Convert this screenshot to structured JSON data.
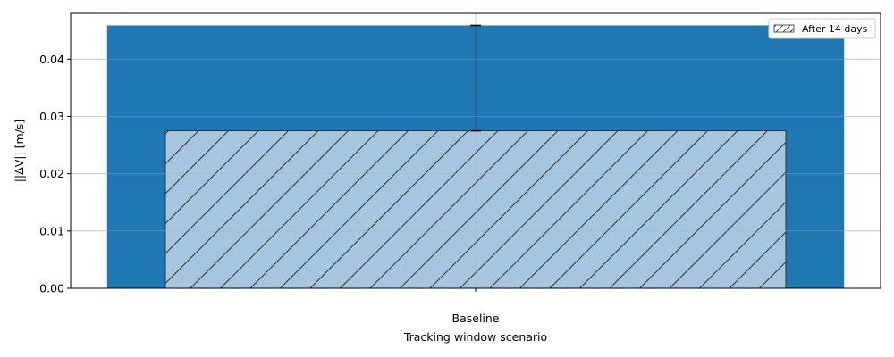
{
  "chart_data": {
    "type": "bar",
    "categories": [
      "Baseline"
    ],
    "series": [
      {
        "values": [
          0.0459
        ],
        "color": "#1f77b4",
        "hatch": false
      },
      {
        "name": "After 14 days",
        "values": [
          0.0275
        ],
        "color": "#a6c6df",
        "hatch": true,
        "edge_color": "#333333"
      }
    ],
    "error_bar": {
      "low": 0.0275,
      "high": 0.0459,
      "color": "#000000"
    },
    "xlabel": "Tracking window scenario",
    "ylabel": "||ΔV|| [m/s]",
    "ylim": [
      0,
      0.048
    ],
    "yticks": [
      "0.00",
      "0.01",
      "0.02",
      "0.03",
      "0.04"
    ],
    "ytick_values": [
      0,
      0.01,
      0.02,
      0.03,
      0.04
    ],
    "grid": true,
    "legend_position": "top-right"
  }
}
